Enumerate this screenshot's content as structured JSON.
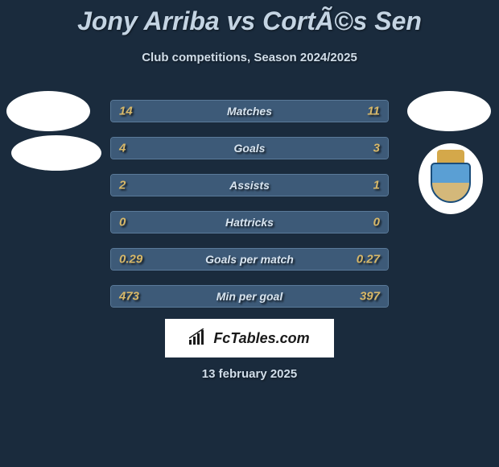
{
  "title": "Jony Arriba vs CortÃ©s Sen",
  "subtitle": "Club competitions, Season 2024/2025",
  "date": "13 february 2025",
  "logo_text": "FcTables.com",
  "colors": {
    "background": "#1a2b3d",
    "title_color": "#c4d4e3",
    "subtitle_color": "#d0dde9",
    "label_color": "#d8e4ef",
    "value_color": "#d8b868",
    "bar_border": "#5a7a99",
    "bar_bg": "#2a3d52",
    "bar_fill": "#3d5a78",
    "avatar_bg": "#ffffff"
  },
  "stats": [
    {
      "label": "Matches",
      "left_val": "14",
      "right_val": "11",
      "left_fill_pct": 56,
      "right_fill_pct": 44
    },
    {
      "label": "Goals",
      "left_val": "4",
      "right_val": "3",
      "left_fill_pct": 57,
      "right_fill_pct": 43
    },
    {
      "label": "Assists",
      "left_val": "2",
      "right_val": "1",
      "left_fill_pct": 67,
      "right_fill_pct": 33
    },
    {
      "label": "Hattricks",
      "left_val": "0",
      "right_val": "0",
      "left_fill_pct": 50,
      "right_fill_pct": 50
    },
    {
      "label": "Goals per match",
      "left_val": "0.29",
      "right_val": "0.27",
      "left_fill_pct": 52,
      "right_fill_pct": 48
    },
    {
      "label": "Min per goal",
      "left_val": "473",
      "right_val": "397",
      "left_fill_pct": 54,
      "right_fill_pct": 46
    }
  ]
}
